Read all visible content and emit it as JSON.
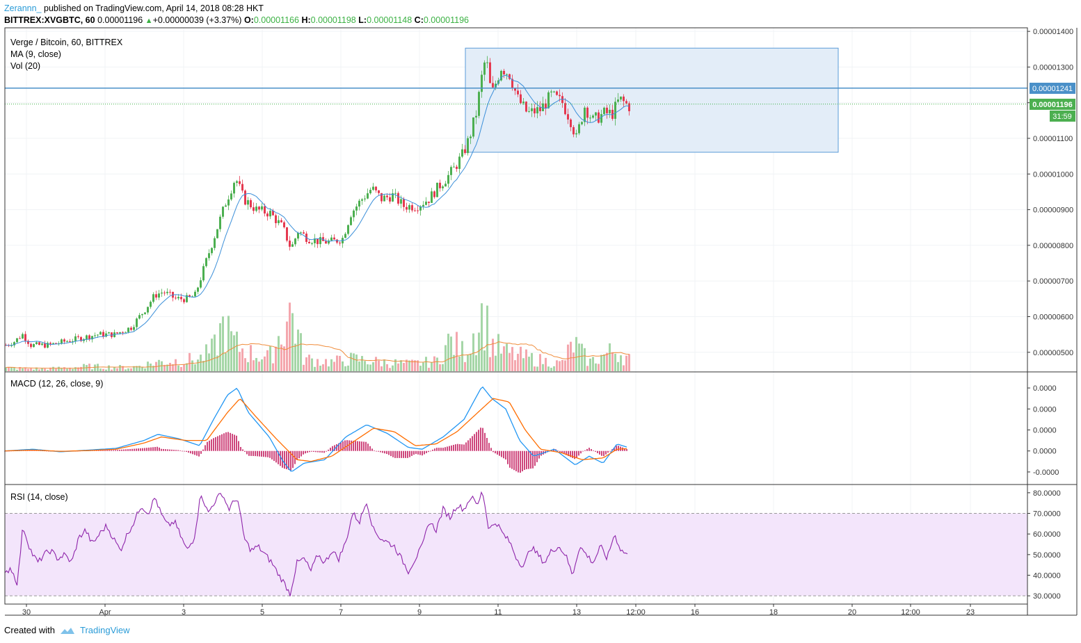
{
  "header": {
    "author": "Zerannn_",
    "published": "published on TradingView.com, April 14, 2018 08:28 HKT",
    "symbol": "BITTREX:XVGBTC, 60",
    "last": "0.00001196",
    "change": "+0.00000039 (+3.37%)",
    "o_label": "O:",
    "o": "0.00001166",
    "h_label": "H:",
    "h": "0.00001198",
    "l_label": "L:",
    "l": "0.00001148",
    "c_label": "C:",
    "c": "0.00001196"
  },
  "legend": {
    "title": "Verge / Bitcoin, 60, BITTREX",
    "ma": "MA (9, close)",
    "vol": "Vol (20)",
    "macd": "MACD (12, 26, close, 9)",
    "rsi": "RSI (14, close)"
  },
  "badges": {
    "hline_price": "0.00001241",
    "last_price": "0.00001196",
    "countdown": "31:59"
  },
  "footer": {
    "created_with": "Created with",
    "brand": "TradingView"
  },
  "colors": {
    "up": "#4caf50",
    "down": "#e53950",
    "ma": "#3b8fd9",
    "vol_up": "#a5d6a7",
    "vol_down": "#f4a6ad",
    "vol_ma": "#f08c3a",
    "macd": "#2196f3",
    "signal": "#ff6d00",
    "hist": "#c2185b",
    "rsi": "#8e24aa",
    "rsi_band": "#f3e5fb",
    "box_fill": "#e3edf8",
    "box_border": "#5a9bd8",
    "hline": "#4a90c8"
  },
  "chart_data": {
    "type": "candlestick",
    "title": "Verge / Bitcoin, 60, BITTREX",
    "price_axis": {
      "ticks": [
        "0.00001400",
        "0.00001300",
        "0.00001200",
        "0.00001100",
        "0.00001000",
        "0.00000900",
        "0.00000800",
        "0.00000700",
        "0.00000600",
        "0.00000500"
      ],
      "range": [
        4.45e-06,
        1.41e-05
      ]
    },
    "time_axis": {
      "ticks": [
        "30",
        "Apr",
        "3",
        "5",
        "7",
        "9",
        "11",
        "13",
        "12:00",
        "16",
        "18",
        "20",
        "12:00",
        "23"
      ]
    },
    "price_path": [
      [
        0,
        5.2e-06
      ],
      [
        12,
        5.3e-06
      ],
      [
        24,
        5.5e-06
      ],
      [
        36,
        5.2e-06
      ],
      [
        60,
        5.2e-06
      ],
      [
        84,
        5.3e-06
      ],
      [
        108,
        5.4e-06
      ],
      [
        132,
        5.5e-06
      ],
      [
        156,
        5.5e-06
      ],
      [
        180,
        5.7e-06
      ],
      [
        200,
        6.2e-06
      ],
      [
        214,
        6.6e-06
      ],
      [
        226,
        6.7e-06
      ],
      [
        244,
        6.5e-06
      ],
      [
        262,
        6.5e-06
      ],
      [
        272,
        6.6e-06
      ],
      [
        282,
        7.2e-06
      ],
      [
        292,
        7.8e-06
      ],
      [
        304,
        8.5e-06
      ],
      [
        316,
        9.2e-06
      ],
      [
        330,
        9.9e-06
      ],
      [
        342,
        9.3e-06
      ],
      [
        360,
        9e-06
      ],
      [
        380,
        8.9e-06
      ],
      [
        398,
        8.5e-06
      ],
      [
        410,
        7.9e-06
      ],
      [
        420,
        8.4e-06
      ],
      [
        434,
        8.2e-06
      ],
      [
        452,
        8.1e-06
      ],
      [
        470,
        8.1e-06
      ],
      [
        484,
        8.2e-06
      ],
      [
        496,
        8.9e-06
      ],
      [
        512,
        9.3e-06
      ],
      [
        526,
        9.6e-06
      ],
      [
        540,
        9.3e-06
      ],
      [
        556,
        9.4e-06
      ],
      [
        572,
        9.1e-06
      ],
      [
        590,
        9.1e-06
      ],
      [
        608,
        9.3e-06
      ],
      [
        620,
        9.6e-06
      ],
      [
        634,
        9.9e-06
      ],
      [
        646,
        1.02e-05
      ],
      [
        658,
        1.06e-05
      ],
      [
        666,
        1.1e-05
      ],
      [
        676,
        1.17e-05
      ],
      [
        684,
        1.27e-05
      ],
      [
        690,
        1.33e-05
      ],
      [
        698,
        1.22e-05
      ],
      [
        712,
        1.3e-05
      ],
      [
        724,
        1.28e-05
      ],
      [
        736,
        1.21e-05
      ],
      [
        750,
        1.17e-05
      ],
      [
        768,
        1.18e-05
      ],
      [
        784,
        1.22e-05
      ],
      [
        800,
        1.2e-05
      ],
      [
        812,
        1.15e-05
      ],
      [
        820,
        1.1e-05
      ],
      [
        832,
        1.19e-05
      ],
      [
        844,
        1.15e-05
      ],
      [
        860,
        1.17e-05
      ],
      [
        872,
        1.17e-05
      ],
      [
        882,
        1.21e-05
      ],
      [
        896,
        1.19e-05
      ],
      [
        904,
        1.2e-05
      ]
    ],
    "rectangle": {
      "top": 1.353e-05,
      "bottom": 1.061e-05,
      "start_day": "10",
      "end_day": "19"
    },
    "horizontal_line": 1.241e-05,
    "last_price": 1.196e-05,
    "volume_profile": [
      [
        0,
        0.05
      ],
      [
        60,
        0.04
      ],
      [
        120,
        0.08
      ],
      [
        180,
        0.06
      ],
      [
        220,
        0.15
      ],
      [
        280,
        0.2
      ],
      [
        300,
        0.35
      ],
      [
        314,
        0.75
      ],
      [
        330,
        0.45
      ],
      [
        350,
        0.3
      ],
      [
        380,
        0.22
      ],
      [
        412,
        1.0
      ],
      [
        430,
        0.2
      ],
      [
        470,
        0.15
      ],
      [
        500,
        0.2
      ],
      [
        540,
        0.15
      ],
      [
        580,
        0.12
      ],
      [
        620,
        0.16
      ],
      [
        640,
        0.5
      ],
      [
        660,
        0.3
      ],
      [
        688,
        0.95
      ],
      [
        700,
        0.45
      ],
      [
        720,
        0.3
      ],
      [
        760,
        0.2
      ],
      [
        800,
        0.12
      ],
      [
        818,
        0.45
      ],
      [
        840,
        0.15
      ],
      [
        878,
        0.35
      ],
      [
        904,
        0.15
      ]
    ],
    "macd": {
      "ticks": [
        "0.0000",
        "0.0000",
        "0.0000",
        "0.0000",
        "-0.0000"
      ],
      "macd_path": [
        [
          0,
          0
        ],
        [
          40,
          0.1
        ],
        [
          80,
          -0.05
        ],
        [
          120,
          0.05
        ],
        [
          160,
          0.15
        ],
        [
          200,
          0.6
        ],
        [
          220,
          0.95
        ],
        [
          250,
          0.7
        ],
        [
          280,
          0.3
        ],
        [
          300,
          1.8
        ],
        [
          320,
          3.2
        ],
        [
          334,
          3.6
        ],
        [
          350,
          2.2
        ],
        [
          380,
          0.8
        ],
        [
          400,
          -0.6
        ],
        [
          412,
          -1.2
        ],
        [
          430,
          -0.7
        ],
        [
          460,
          -0.5
        ],
        [
          490,
          0.8
        ],
        [
          520,
          1.5
        ],
        [
          550,
          1.0
        ],
        [
          580,
          0.2
        ],
        [
          600,
          0.1
        ],
        [
          630,
          0.8
        ],
        [
          660,
          1.8
        ],
        [
          686,
          3.7
        ],
        [
          700,
          3.0
        ],
        [
          720,
          2.4
        ],
        [
          740,
          0.6
        ],
        [
          760,
          -0.3
        ],
        [
          790,
          0.1
        ],
        [
          820,
          -0.8
        ],
        [
          840,
          -0.3
        ],
        [
          860,
          -0.7
        ],
        [
          880,
          0.4
        ],
        [
          904,
          0.1
        ]
      ],
      "signal_path": [
        [
          0,
          0
        ],
        [
          40,
          0.05
        ],
        [
          80,
          -0.02
        ],
        [
          120,
          0.02
        ],
        [
          160,
          0.1
        ],
        [
          200,
          0.45
        ],
        [
          225,
          0.8
        ],
        [
          260,
          0.6
        ],
        [
          290,
          0.6
        ],
        [
          320,
          2.2
        ],
        [
          338,
          3.0
        ],
        [
          360,
          2.0
        ],
        [
          390,
          0.7
        ],
        [
          420,
          -0.5
        ],
        [
          440,
          -0.6
        ],
        [
          470,
          -0.3
        ],
        [
          500,
          0.5
        ],
        [
          530,
          1.3
        ],
        [
          560,
          1.1
        ],
        [
          590,
          0.3
        ],
        [
          620,
          0.4
        ],
        [
          650,
          1.1
        ],
        [
          680,
          2.2
        ],
        [
          702,
          3.0
        ],
        [
          725,
          2.8
        ],
        [
          748,
          1.2
        ],
        [
          770,
          0.1
        ],
        [
          800,
          -0.1
        ],
        [
          830,
          -0.5
        ],
        [
          860,
          -0.4
        ],
        [
          880,
          0.1
        ],
        [
          904,
          0.15
        ]
      ],
      "range": [
        -1.6,
        4.2
      ]
    },
    "rsi": {
      "ticks": [
        "80.0000",
        "70.0000",
        "60.0000",
        "50.0000",
        "40.0000",
        "30.0000"
      ],
      "band": [
        30,
        70
      ],
      "range": [
        26,
        84
      ],
      "path": [
        [
          0,
          40
        ],
        [
          8,
          44
        ],
        [
          18,
          36
        ],
        [
          26,
          64
        ],
        [
          34,
          55
        ],
        [
          40,
          50
        ],
        [
          48,
          46
        ],
        [
          56,
          50
        ],
        [
          66,
          52
        ],
        [
          76,
          48
        ],
        [
          86,
          50
        ],
        [
          96,
          46
        ],
        [
          106,
          58
        ],
        [
          116,
          62
        ],
        [
          126,
          55
        ],
        [
          136,
          60
        ],
        [
          146,
          64
        ],
        [
          156,
          58
        ],
        [
          166,
          52
        ],
        [
          176,
          60
        ],
        [
          186,
          66
        ],
        [
          196,
          74
        ],
        [
          206,
          70
        ],
        [
          216,
          78
        ],
        [
          224,
          70
        ],
        [
          234,
          64
        ],
        [
          244,
          66
        ],
        [
          254,
          58
        ],
        [
          262,
          52
        ],
        [
          272,
          58
        ],
        [
          282,
          80
        ],
        [
          292,
          70
        ],
        [
          302,
          76
        ],
        [
          312,
          80
        ],
        [
          322,
          72
        ],
        [
          334,
          78
        ],
        [
          344,
          58
        ],
        [
          354,
          52
        ],
        [
          364,
          54
        ],
        [
          374,
          50
        ],
        [
          384,
          46
        ],
        [
          394,
          40
        ],
        [
          402,
          36
        ],
        [
          410,
          31
        ],
        [
          420,
          46
        ],
        [
          430,
          48
        ],
        [
          440,
          42
        ],
        [
          450,
          50
        ],
        [
          460,
          46
        ],
        [
          470,
          52
        ],
        [
          480,
          48
        ],
        [
          490,
          56
        ],
        [
          500,
          70
        ],
        [
          510,
          66
        ],
        [
          520,
          76
        ],
        [
          530,
          62
        ],
        [
          540,
          58
        ],
        [
          550,
          56
        ],
        [
          560,
          54
        ],
        [
          570,
          48
        ],
        [
          580,
          42
        ],
        [
          590,
          48
        ],
        [
          600,
          54
        ],
        [
          610,
          66
        ],
        [
          620,
          62
        ],
        [
          630,
          72
        ],
        [
          640,
          68
        ],
        [
          650,
          74
        ],
        [
          660,
          72
        ],
        [
          670,
          78
        ],
        [
          680,
          74
        ],
        [
          686,
          82
        ],
        [
          696,
          62
        ],
        [
          706,
          66
        ],
        [
          716,
          60
        ],
        [
          726,
          56
        ],
        [
          736,
          48
        ],
        [
          746,
          44
        ],
        [
          756,
          54
        ],
        [
          766,
          50
        ],
        [
          776,
          46
        ],
        [
          786,
          52
        ],
        [
          796,
          54
        ],
        [
          806,
          50
        ],
        [
          816,
          40
        ],
        [
          826,
          54
        ],
        [
          836,
          50
        ],
        [
          846,
          46
        ],
        [
          856,
          54
        ],
        [
          866,
          48
        ],
        [
          876,
          60
        ],
        [
          886,
          52
        ],
        [
          896,
          50
        ],
        [
          904,
          54
        ]
      ]
    }
  }
}
